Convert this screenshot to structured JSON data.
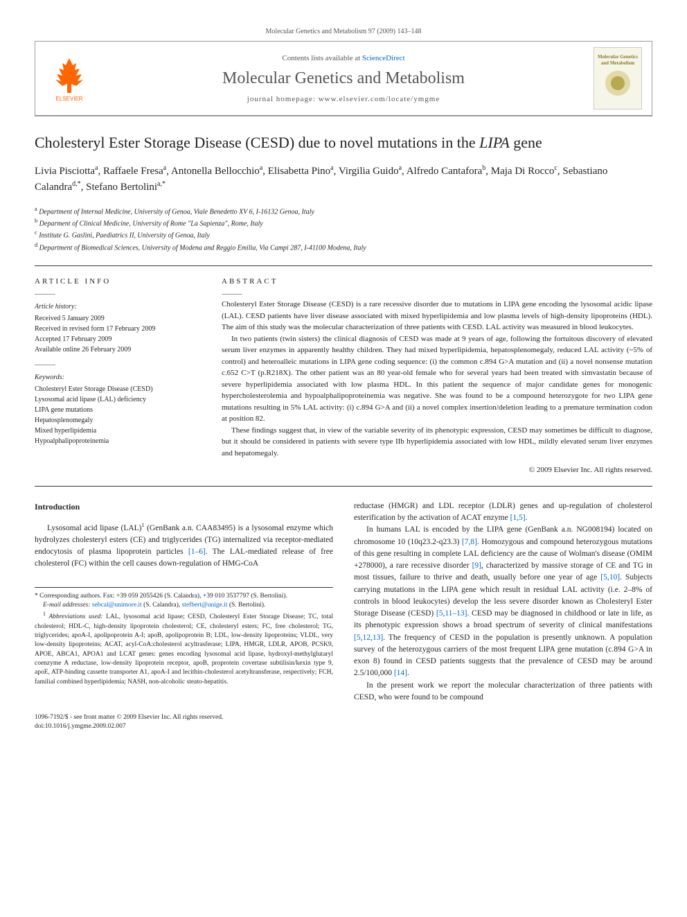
{
  "header": {
    "citation": "Molecular Genetics and Metabolism 97 (2009) 143–148",
    "contents_text": "Contents lists available at ",
    "contents_link": "ScienceDirect",
    "journal_title": "Molecular Genetics and Metabolism",
    "homepage_label": "journal homepage: www.elsevier.com/locate/ymgme",
    "publisher": "ELSEVIER",
    "cover_text": "Molecular Genetics and Metabolism"
  },
  "article": {
    "title_pre": "Cholesteryl Ester Storage Disease (CESD) due to novel mutations in the ",
    "title_italic": "LIPA",
    "title_post": " gene",
    "authors_html": "Livia Pisciotta<sup>a</sup>, Raffaele Fresa<sup>a</sup>, Antonella Bellocchio<sup>a</sup>, Elisabetta Pino<sup>a</sup>, Virgilia Guido<sup>a</sup>, Alfredo Cantafora<sup>b</sup>, Maja Di Rocco<sup>c</sup>, Sebastiano Calandra<sup>d,*</sup>, Stefano Bertolini<sup>a,*</sup>",
    "affiliations": {
      "a": "Department of Internal Medicine, University of Genoa, Viale Benedetto XV 6, I-16132 Genoa, Italy",
      "b": "Deparment of Clinical Medicine, University of Rome \"La Sapienza\", Rome, Italy",
      "c": "Institute G. Gaslini, Paediatrics II, University of Genoa, Italy",
      "d": "Department of Biomedical Sciences, University of Modena and Reggio Emilia, Via Campi 287, I-41100 Modena, Italy"
    }
  },
  "info": {
    "heading": "ARTICLE INFO",
    "history_label": "Article history:",
    "history": [
      "Received 5 January 2009",
      "Received in revised form 17 February 2009",
      "Accepted 17 February 2009",
      "Available online 26 February 2009"
    ],
    "keywords_label": "Keywords:",
    "keywords": [
      "Cholesteryl Ester Storage Disease (CESD)",
      "Lysosomal acid lipase (LAL) deficiency",
      "LIPA gene mutations",
      "Hepatosplenomegaly",
      "Mixed hyperlipidemia",
      "Hypoalphalipoproteinemia"
    ]
  },
  "abstract": {
    "heading": "ABSTRACT",
    "p1": "Cholesteryl Ester Storage Disease (CESD) is a rare recessive disorder due to mutations in LIPA gene encoding the lysosomal acidic lipase (LAL). CESD patients have liver disease associated with mixed hyperlipidemia and low plasma levels of high-density lipoproteins (HDL). The aim of this study was the molecular characterization of three patients with CESD. LAL activity was measured in blood leukocytes.",
    "p2": "In two patients (twin sisters) the clinical diagnosis of CESD was made at 9 years of age, following the fortuitous discovery of elevated serum liver enzymes in apparently healthy children. They had mixed hyperlipidemia, hepatosplenomegaly, reduced LAL activity (~5% of control) and heteroalleic mutations in LIPA gene coding sequence: (i) the common c.894 G>A mutation and (ii) a novel nonsense mutation c.652 C>T (p.R218X). The other patient was an 80 year-old female who for several years had been treated with simvastatin because of severe hyperlipidemia associated with low plasma HDL. In this patient the sequence of major candidate genes for monogenic hypercholesterolemia and hypoalphalipoproteinemia was negative. She was found to be a compound heterozygote for two LIPA gene mutations resulting in 5% LAL activity: (i) c.894 G>A and (ii) a novel complex insertion/deletion leading to a premature termination codon at position 82.",
    "p3": "These findings suggest that, in view of the variable severity of its phenotypic expression, CESD may sometimes be difficult to diagnose, but it should be considered in patients with severe type IIb hyperlipidemia associated with low HDL, mildly elevated serum liver enzymes and hepatomegaly.",
    "copyright": "© 2009 Elsevier Inc. All rights reserved."
  },
  "body": {
    "intro_heading": "Introduction",
    "left_p1_pre": "Lysosomal acid lipase (LAL)",
    "left_p1_sup": "1",
    "left_p1_post": " (GenBank a.n. CAA83495) is a lysosomal enzyme which hydrolyzes cholesteryl esters (CE) and triglycerides (TG) internalized via receptor-mediated endocytosis of plasma lipoprotein particles ",
    "left_p1_ref": "[1–6]",
    "left_p1_end": ". The LAL-mediated release of free cholesterol (FC) within the cell causes down-regulation of HMG-CoA",
    "right_p1_pre": "reductase (HMGR) and LDL receptor (LDLR) genes and up-regulation of cholesterol esterification by the activation of ACAT enzyme ",
    "right_p1_ref": "[1,5]",
    "right_p1_end": ".",
    "right_p2_a": "In humans LAL is encoded by the LIPA gene (GenBank a.n. NG008194) located on chromosome 10 (10q23.2-q23.3) ",
    "right_p2_ref1": "[7,8]",
    "right_p2_b": ". Homozygous and compound heterozygous mutations of this gene resulting in complete LAL deficiency are the cause of Wolman's disease (OMIM +278000), a rare recessive disorder ",
    "right_p2_ref2": "[9]",
    "right_p2_c": ", characterized by massive storage of CE and TG in most tissues, failure to thrive and death, usually before one year of age ",
    "right_p2_ref3": "[5,10]",
    "right_p2_d": ". Subjects carrying mutations in the LIPA gene which result in residual LAL activity (i.e. 2–8% of controls in blood leukocytes) develop the less severe disorder known as Cholesteryl Ester Storage Disease (CESD) ",
    "right_p2_ref4": "[5,11–13]",
    "right_p2_e": ". CESD may be diagnosed in childhood or late in life, as its phenotypic expression shows a broad spectrum of severity of clinical manifestations ",
    "right_p2_ref5": "[5,12,13]",
    "right_p2_f": ". The frequency of CESD in the population is presently unknown. A population survey of the heterozygous carriers of the most frequent LIPA gene mutation (c.894 G>A in exon 8) found in CESD patients suggests that the prevalence of CESD may be around 2.5/100,000 ",
    "right_p2_ref6": "[14]",
    "right_p2_g": ".",
    "right_p3": "In the present work we report the molecular characterization of three patients with CESD, who were found to be compound"
  },
  "footnotes": {
    "corr": "* Corresponding authors. Fax: +39 059 2055426 (S. Calandra), +39 010 3537797 (S. Bertolini).",
    "email_label": "E-mail addresses: ",
    "email1": "sebcal@unimore.it",
    "email1_who": " (S. Calandra), ",
    "email2": "stefbert@unige.it",
    "email2_who": " (S. Bertolini).",
    "abbrev_label": "Abbreviations used:",
    "abbrev_text": " LAL, lysosomal acid lipase; CESD, Cholesteryl Ester Storage Disease; TC, total cholesterol; HDL-C, high-density lipoprotein cholesterol; CE, cholesteryl esters; FC, free cholesterol; TG, triglycerides; apoA-I, apolipoprotein A-I; apoB, apolipoprotein B; LDL, low-density lipoproteins; VLDL, very low-density lipoproteins; ACAT, acyl-CoA:cholesterol acyltrasferase; LIPA, HMGR, LDLR, APOB, PCSK9, APOE, ABCA1, APOA1 and LCAT genes: genes encoding lysosomal acid lipase, hydroxyl-methylglutaryl coenzyme A reductase, low-density lipoprotein receptor, apoB, proprotein covertase subtilisin/kexin type 9, apoE, ATP-binding cassette transporter A1, apoA-I and lecithin-cholesterol acetyltransferase, respectively; FCH, familial combined hyperlipidemia; NASH, non-alcoholic steato-hepatitis."
  },
  "footer": {
    "line1": "1096-7192/$ - see front matter © 2009 Elsevier Inc. All rights reserved.",
    "line2": "doi:10.1016/j.ymgme.2009.02.007"
  },
  "colors": {
    "link": "#0066cc",
    "elsevier": "#ff6600",
    "text": "#222222",
    "border": "#999999"
  }
}
